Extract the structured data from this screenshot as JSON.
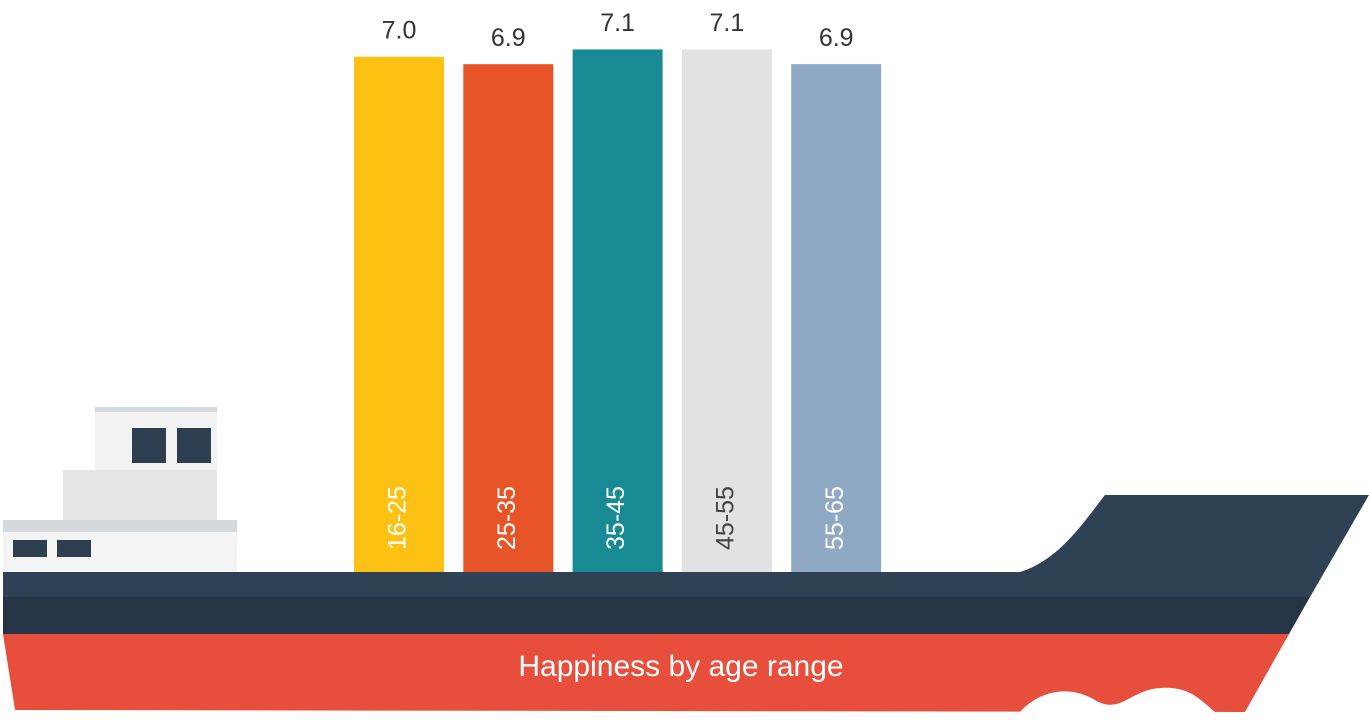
{
  "chart_data": {
    "type": "bar",
    "title": "Happiness by age range",
    "categories": [
      "16-25",
      "25-35",
      "35-45",
      "45-55",
      "55-65"
    ],
    "values": [
      7.0,
      6.9,
      7.1,
      7.1,
      6.9
    ],
    "value_labels": [
      "7.0",
      "6.9",
      "7.1",
      "7.1",
      "6.9"
    ],
    "colors": [
      "#fdc113",
      "#e65428",
      "#188a93",
      "#e1e2e4",
      "#8fa9c4"
    ]
  }
}
